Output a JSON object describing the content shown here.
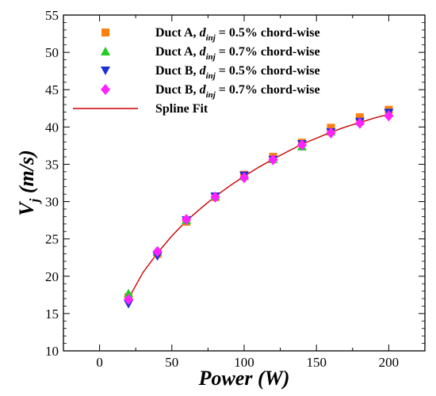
{
  "chart_data": {
    "type": "scatter",
    "xlabel": "Power (W)",
    "ylabel_main": "V",
    "ylabel_sub": "j",
    "ylabel_rest": " (m/s)",
    "xlim": [
      -25,
      225
    ],
    "ylim": [
      10,
      55
    ],
    "xticks": [
      0,
      50,
      100,
      150,
      200
    ],
    "yticks": [
      10,
      15,
      20,
      25,
      30,
      35,
      40,
      45,
      50,
      55
    ],
    "grid": false,
    "legend_position": "top-left",
    "series": [
      {
        "name": "Duct A, d_inj = 0.5% chord-wise",
        "legend_pre": "Duct A, ",
        "legend_d": "d",
        "legend_sub": "inj",
        "legend_post": " = 0.5% chord-wise",
        "marker": "square",
        "color": "#ff7f0e",
        "x": [
          20,
          40,
          60,
          80,
          100,
          120,
          140,
          160,
          180,
          200
        ],
        "y": [
          17.2,
          23.0,
          27.3,
          30.6,
          33.6,
          36.0,
          37.9,
          39.9,
          41.3,
          42.3
        ]
      },
      {
        "name": "Duct A, d_inj = 0.7% chord-wise",
        "legend_pre": "Duct A, ",
        "legend_d": "d",
        "legend_sub": "inj",
        "legend_post": " = 0.7% chord-wise",
        "marker": "triangle-up",
        "color": "#22cc22",
        "x": [
          20,
          40,
          60,
          80,
          100,
          120,
          140,
          160,
          180,
          200
        ],
        "y": [
          17.7,
          23.3,
          27.5,
          30.7,
          33.4,
          35.7,
          37.4,
          39.4,
          40.8,
          41.9
        ]
      },
      {
        "name": "Duct B, d_inj = 0.5% chord-wise",
        "legend_pre": "Duct B, ",
        "legend_d": "d",
        "legend_sub": "inj",
        "legend_post": " = 0.5% chord-wise",
        "marker": "triangle-down",
        "color": "#1f2fd6",
        "x": [
          20,
          40,
          60,
          80,
          100,
          120,
          140,
          160,
          180,
          200
        ],
        "y": [
          16.3,
          22.7,
          27.5,
          30.7,
          33.5,
          35.6,
          37.7,
          39.3,
          40.7,
          41.9
        ]
      },
      {
        "name": "Duct B, d_inj = 0.7% chord-wise",
        "legend_pre": "Duct B, ",
        "legend_d": "d",
        "legend_sub": "inj",
        "legend_post": " = 0.7% chord-wise",
        "marker": "diamond",
        "color": "#ff22ff",
        "x": [
          20,
          40,
          60,
          80,
          100,
          120,
          140,
          160,
          180,
          200
        ],
        "y": [
          16.9,
          23.3,
          27.6,
          30.6,
          33.2,
          35.6,
          37.6,
          39.2,
          40.5,
          41.5
        ]
      }
    ],
    "fit": {
      "name": "Spline Fit",
      "color": "#cc0000",
      "x": [
        20,
        30,
        40,
        50,
        60,
        70,
        80,
        90,
        100,
        110,
        120,
        130,
        140,
        150,
        160,
        170,
        180,
        190,
        200
      ],
      "y": [
        17.0,
        20.5,
        23.1,
        25.4,
        27.4,
        29.1,
        30.7,
        32.1,
        33.4,
        34.6,
        35.7,
        36.7,
        37.7,
        38.5,
        39.3,
        40.0,
        40.6,
        41.2,
        41.7
      ]
    }
  }
}
